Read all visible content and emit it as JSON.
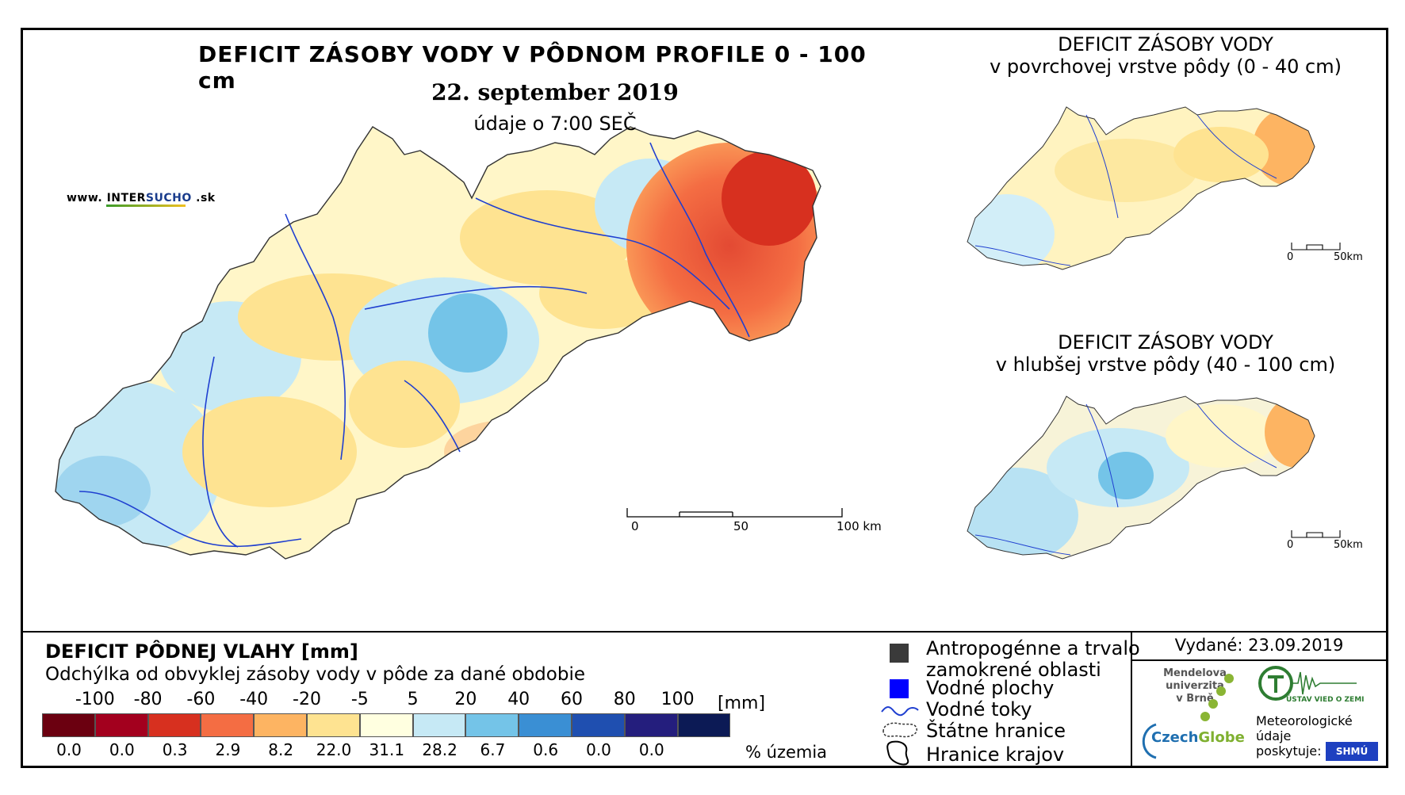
{
  "main": {
    "title": "DEFICIT ZÁSOBY VODY V PÔDNOM PROFILE 0 - 100 cm",
    "date": "22. september 2019",
    "data_time": "údaje o 7:00 SEČ",
    "scale": {
      "labels": [
        "0",
        "50",
        "100 km"
      ]
    }
  },
  "branding": {
    "prefix": "www. INTER",
    "highlight": "SUCHO",
    "suffix": " .sk"
  },
  "inset_top": {
    "title_line1": "DEFICIT ZÁSOBY VODY",
    "title_line2": "v povrchovej vrstve pôdy (0 - 40 cm)",
    "scale": {
      "labels": [
        "0",
        "50km"
      ]
    }
  },
  "inset_bottom": {
    "title_line1": "DEFICIT ZÁSOBY VODY",
    "title_line2": "v hlubšej vrstve pôdy (40 - 100 cm)",
    "scale": {
      "labels": [
        "0",
        "50km"
      ]
    }
  },
  "legend": {
    "title": "DEFICIT PÔDNEJ VLAHY [mm]",
    "subtitle": "Odchýlka od obvyklej zásoby vody v pôde za dané obdobie",
    "ticks": [
      "-100",
      "-80",
      "-60",
      "-40",
      "-20",
      "-5",
      "5",
      "20",
      "40",
      "60",
      "80",
      "100"
    ],
    "units": "[mm]",
    "colors": [
      "#6b0010",
      "#a3001e",
      "#d7301f",
      "#f46d43",
      "#fdb462",
      "#fee391",
      "#ffffe0",
      "#c6e9f5",
      "#74c4e8",
      "#3a8fd4",
      "#1f4fb0",
      "#241e7d",
      "#0c1a55"
    ],
    "percentages": [
      "0.0",
      "0.0",
      "0.3",
      "2.9",
      "8.2",
      "22.0",
      "31.1",
      "28.2",
      "6.7",
      "0.6",
      "0.0",
      "0.0"
    ],
    "pct_unit": "% územia"
  },
  "symbols": {
    "urban": "Antropogénne a trvalo zamokrené oblasti",
    "urban_l1": "Antropogénne a trvalo",
    "urban_l2": "zamokrené oblasti",
    "water": "Vodné plochy",
    "rivers": "Vodné toky",
    "border": "Štátne hranice",
    "regions": "Hranice krajov"
  },
  "issued": "Vydané: 23.09.2019",
  "logos": {
    "mendel_l1": "Mendelova",
    "mendel_l2": "univerzita",
    "mendel_l3": "v Brně",
    "czechglobe_a": "Czech",
    "czechglobe_b": "Globe",
    "ustav": "ÚSTAV VIED O ZEMI",
    "meteo_l1": "Meteorologické",
    "meteo_l2": "údaje",
    "meteo_l3": "poskytuje:",
    "shmu": "SHMÚ"
  }
}
